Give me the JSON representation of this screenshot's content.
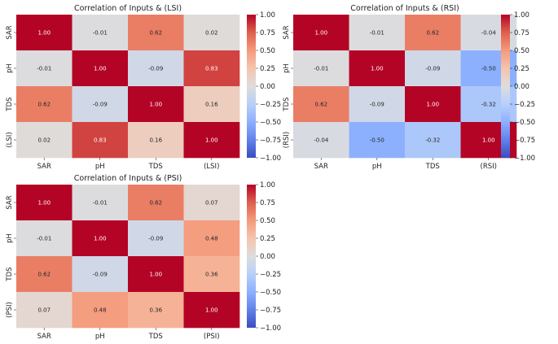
{
  "chart_data": [
    {
      "type": "heatmap",
      "title": "Correlation of Inputs &  (LSI)",
      "x_labels": [
        "SAR",
        "pH",
        "TDS",
        "(LSI)"
      ],
      "y_labels": [
        "SAR",
        "pH",
        "TDS",
        "(LSI)"
      ],
      "values": [
        [
          1.0,
          -0.01,
          0.62,
          0.02
        ],
        [
          -0.01,
          1.0,
          -0.09,
          0.83
        ],
        [
          0.62,
          -0.09,
          1.0,
          0.16
        ],
        [
          0.02,
          0.83,
          0.16,
          1.0
        ]
      ],
      "value_labels": [
        [
          "1.00",
          "-0.01",
          "0.62",
          "0.02"
        ],
        [
          "-0.01",
          "1.00",
          "-0.09",
          "0.83"
        ],
        [
          "0.62",
          "-0.09",
          "1.00",
          "0.16"
        ],
        [
          "0.02",
          "0.83",
          "0.16",
          "1.00"
        ]
      ],
      "vmin": -1.0,
      "vmax": 1.0,
      "colormap": "coolwarm",
      "colorbar_ticks": [
        "1.00",
        "0.75",
        "0.50",
        "0.25",
        "0.00",
        "−0.25",
        "−0.50",
        "−0.75",
        "−1.00"
      ]
    },
    {
      "type": "heatmap",
      "title": "Correlation of Inputs & (RSI)",
      "x_labels": [
        "SAR",
        "pH",
        "TDS",
        "(RSI)"
      ],
      "y_labels": [
        "SAR",
        "pH",
        "TDS",
        "(RSI)"
      ],
      "values": [
        [
          1.0,
          -0.01,
          0.62,
          -0.04
        ],
        [
          -0.01,
          1.0,
          -0.09,
          -0.5
        ],
        [
          0.62,
          -0.09,
          1.0,
          -0.32
        ],
        [
          -0.04,
          -0.5,
          -0.32,
          1.0
        ]
      ],
      "value_labels": [
        [
          "1.00",
          "-0.01",
          "0.62",
          "-0.04"
        ],
        [
          "-0.01",
          "1.00",
          "-0.09",
          "-0.50"
        ],
        [
          "0.62",
          "-0.09",
          "1.00",
          "-0.32"
        ],
        [
          "-0.04",
          "-0.50",
          "-0.32",
          "1.00"
        ]
      ],
      "vmin": -1.0,
      "vmax": 1.0,
      "colormap": "coolwarm",
      "colorbar_ticks": [
        "1.00",
        "0.75",
        "0.50",
        "0.25",
        "0.00",
        "−0.25",
        "−0.50",
        "−0.75",
        "−1.00"
      ]
    },
    {
      "type": "heatmap",
      "title": "Correlation of Inputs &  (PSI)",
      "x_labels": [
        "SAR",
        "pH",
        "TDS",
        "(PSI)"
      ],
      "y_labels": [
        "SAR",
        "pH",
        "TDS",
        "(PSI)"
      ],
      "values": [
        [
          1.0,
          -0.01,
          0.62,
          0.07
        ],
        [
          -0.01,
          1.0,
          -0.09,
          0.48
        ],
        [
          0.62,
          -0.09,
          1.0,
          0.36
        ],
        [
          0.07,
          0.48,
          0.36,
          1.0
        ]
      ],
      "value_labels": [
        [
          "1.00",
          "-0.01",
          "0.62",
          "0.07"
        ],
        [
          "-0.01",
          "1.00",
          "-0.09",
          "0.48"
        ],
        [
          "0.62",
          "-0.09",
          "1.00",
          "0.36"
        ],
        [
          "0.07",
          "0.48",
          "0.36",
          "1.00"
        ]
      ],
      "vmin": -1.0,
      "vmax": 1.0,
      "colormap": "coolwarm",
      "colorbar_ticks": [
        "1.00",
        "0.75",
        "0.50",
        "0.25",
        "0.00",
        "−0.25",
        "−0.50",
        "−0.75",
        "−1.00"
      ]
    }
  ]
}
